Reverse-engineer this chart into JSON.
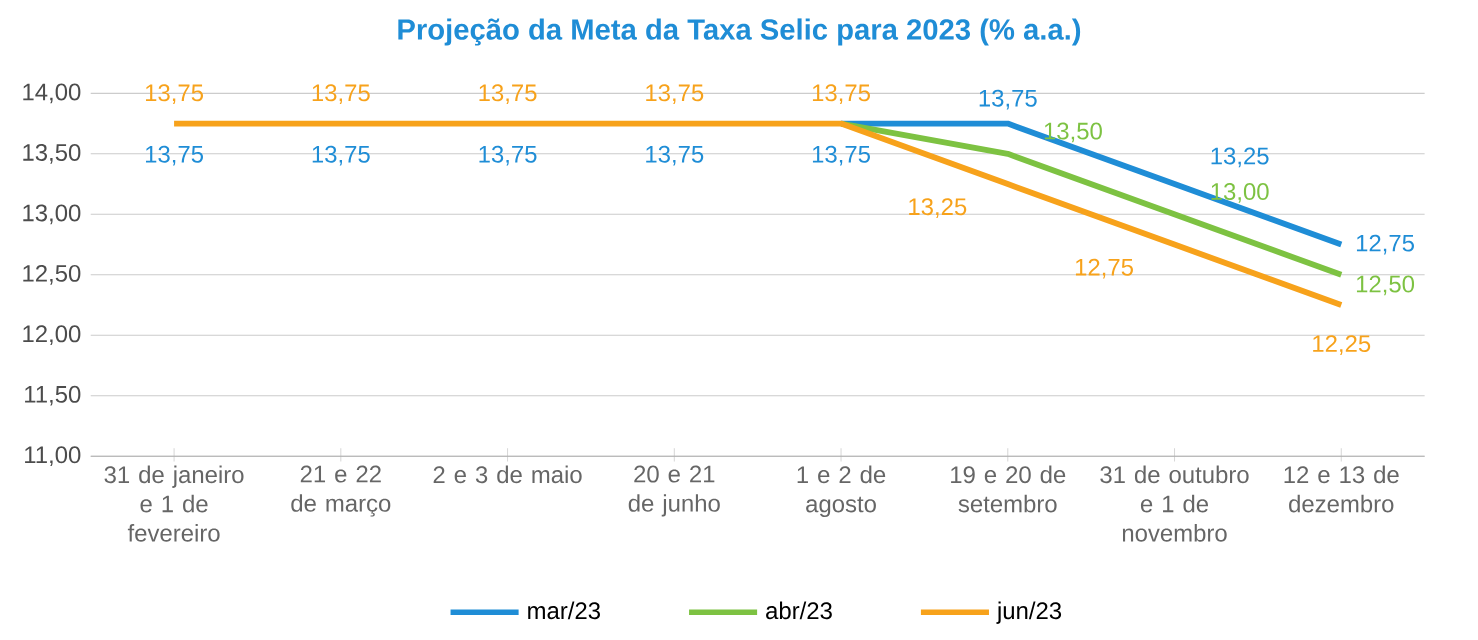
{
  "chart_data": {
    "type": "line",
    "title": "Projeção da Meta da Taxa Selic para 2023 (% a.a.)",
    "categories": [
      "31 de janeiro e 1 de fevereiro",
      "21 e 22 de março",
      "2 e 3 de maio",
      "20 e 21 de junho",
      "1 e 2 de agosto",
      "19 e 20 de setembro",
      "31 de outubro e 1 de novembro",
      "12 e 13 de dezembro"
    ],
    "series": [
      {
        "name": "mar/23",
        "color": "#1f8dd6",
        "values": [
          null,
          null,
          null,
          null,
          13.75,
          13.75,
          13.25,
          12.75
        ],
        "value_labels": [
          "13,75",
          "13,75",
          "13,75",
          "13,75",
          "13,75",
          "13,75",
          "13,25",
          "12,75"
        ]
      },
      {
        "name": "abr/23",
        "color": "#7dc242",
        "values": [
          null,
          null,
          null,
          null,
          13.75,
          13.5,
          13.0,
          12.5
        ],
        "value_labels": [
          null,
          null,
          null,
          null,
          null,
          "13,50",
          "13,00",
          "12,50"
        ]
      },
      {
        "name": "jun/23",
        "color": "#f7a21b",
        "values": [
          13.75,
          13.75,
          13.75,
          13.75,
          13.75,
          13.25,
          12.75,
          12.25
        ],
        "value_labels": [
          "13,75",
          "13,75",
          "13,75",
          "13,75",
          "13,75",
          "13,25",
          "12,75",
          "12,25"
        ]
      }
    ],
    "ylim": [
      11,
      14
    ],
    "yticks": [
      {
        "value": 11,
        "label": "11,00"
      },
      {
        "value": 11.5,
        "label": "11,50"
      },
      {
        "value": 12,
        "label": "12,00"
      },
      {
        "value": 12.5,
        "label": "12,50"
      },
      {
        "value": 13,
        "label": "13,00"
      },
      {
        "value": 13.5,
        "label": "13,50"
      },
      {
        "value": 14,
        "label": "14,00"
      }
    ],
    "grid": "y",
    "legend": "bottom",
    "marker": "none",
    "line_style": "solid"
  }
}
